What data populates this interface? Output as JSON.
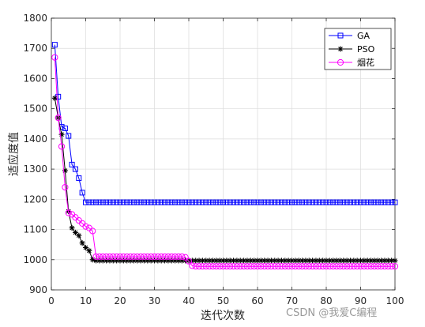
{
  "chart_data": {
    "type": "line",
    "xlabel": "迭代次数",
    "ylabel": "适应度值",
    "xlim": [
      0,
      100
    ],
    "ylim": [
      900,
      1800
    ],
    "xticks": [
      0,
      10,
      20,
      30,
      40,
      50,
      60,
      70,
      80,
      90,
      100
    ],
    "yticks": [
      900,
      1000,
      1100,
      1200,
      1300,
      1400,
      1500,
      1600,
      1700,
      1800
    ],
    "grid": true,
    "legend_position": "top-right",
    "series": [
      {
        "name": "GA",
        "color": "#0000ff",
        "marker": "square",
        "x_start": 1,
        "values": [
          1712,
          1540,
          1440,
          1435,
          1410,
          1315,
          1300,
          1270,
          1222,
          1190,
          1190,
          1190,
          1190,
          1190,
          1190,
          1190,
          1190,
          1190,
          1190,
          1190,
          1190,
          1190,
          1190,
          1190,
          1190,
          1190,
          1190,
          1190,
          1190,
          1190,
          1190,
          1190,
          1190,
          1190,
          1190,
          1190,
          1190,
          1190,
          1190,
          1190,
          1190,
          1190,
          1190,
          1190,
          1190,
          1190,
          1190,
          1190,
          1190,
          1190,
          1190,
          1190,
          1190,
          1190,
          1190,
          1190,
          1190,
          1190,
          1190,
          1190,
          1190,
          1190,
          1190,
          1190,
          1190,
          1190,
          1190,
          1190,
          1190,
          1190,
          1190,
          1190,
          1190,
          1190,
          1190,
          1190,
          1190,
          1190,
          1190,
          1190,
          1190,
          1190,
          1190,
          1190,
          1190,
          1190,
          1190,
          1190,
          1190,
          1190,
          1190,
          1190,
          1190,
          1190,
          1190,
          1190,
          1190,
          1190,
          1190,
          1190
        ]
      },
      {
        "name": "PSO",
        "color": "#000000",
        "marker": "asterisk",
        "x_start": 1,
        "values": [
          1535,
          1470,
          1415,
          1295,
          1160,
          1105,
          1090,
          1080,
          1055,
          1040,
          1030,
          1000,
          997,
          997,
          997,
          997,
          997,
          997,
          997,
          997,
          997,
          997,
          997,
          997,
          997,
          997,
          997,
          997,
          997,
          997,
          997,
          997,
          997,
          997,
          997,
          997,
          997,
          997,
          997,
          997,
          997,
          997,
          997,
          997,
          997,
          997,
          997,
          997,
          997,
          997,
          997,
          997,
          997,
          997,
          997,
          997,
          997,
          997,
          997,
          997,
          997,
          997,
          997,
          997,
          997,
          997,
          997,
          997,
          997,
          997,
          997,
          997,
          997,
          997,
          997,
          997,
          997,
          997,
          997,
          997,
          997,
          997,
          997,
          997,
          997,
          997,
          997,
          997,
          997,
          997,
          997,
          997,
          997,
          997,
          997,
          997,
          997,
          997,
          997,
          997
        ]
      },
      {
        "name": "烟花",
        "color": "#ff00ff",
        "marker": "circle",
        "x_start": 1,
        "values": [
          1670,
          1470,
          1375,
          1240,
          1155,
          1150,
          1140,
          1130,
          1120,
          1110,
          1105,
          1095,
          1010,
          1010,
          1010,
          1010,
          1010,
          1010,
          1010,
          1010,
          1010,
          1010,
          1010,
          1010,
          1010,
          1010,
          1010,
          1010,
          1010,
          1010,
          1010,
          1010,
          1010,
          1010,
          1010,
          1010,
          1010,
          1010,
          1008,
          995,
          980,
          978,
          978,
          978,
          978,
          978,
          978,
          978,
          978,
          978,
          978,
          978,
          978,
          978,
          978,
          978,
          978,
          978,
          978,
          978,
          978,
          978,
          978,
          978,
          978,
          978,
          978,
          978,
          978,
          978,
          978,
          978,
          978,
          978,
          978,
          978,
          978,
          978,
          978,
          978,
          978,
          978,
          978,
          978,
          978,
          978,
          978,
          978,
          978,
          978,
          978,
          978,
          978,
          978,
          978,
          978,
          978,
          978,
          978,
          978
        ]
      }
    ]
  },
  "watermark": "CSDN @我爱C编程"
}
